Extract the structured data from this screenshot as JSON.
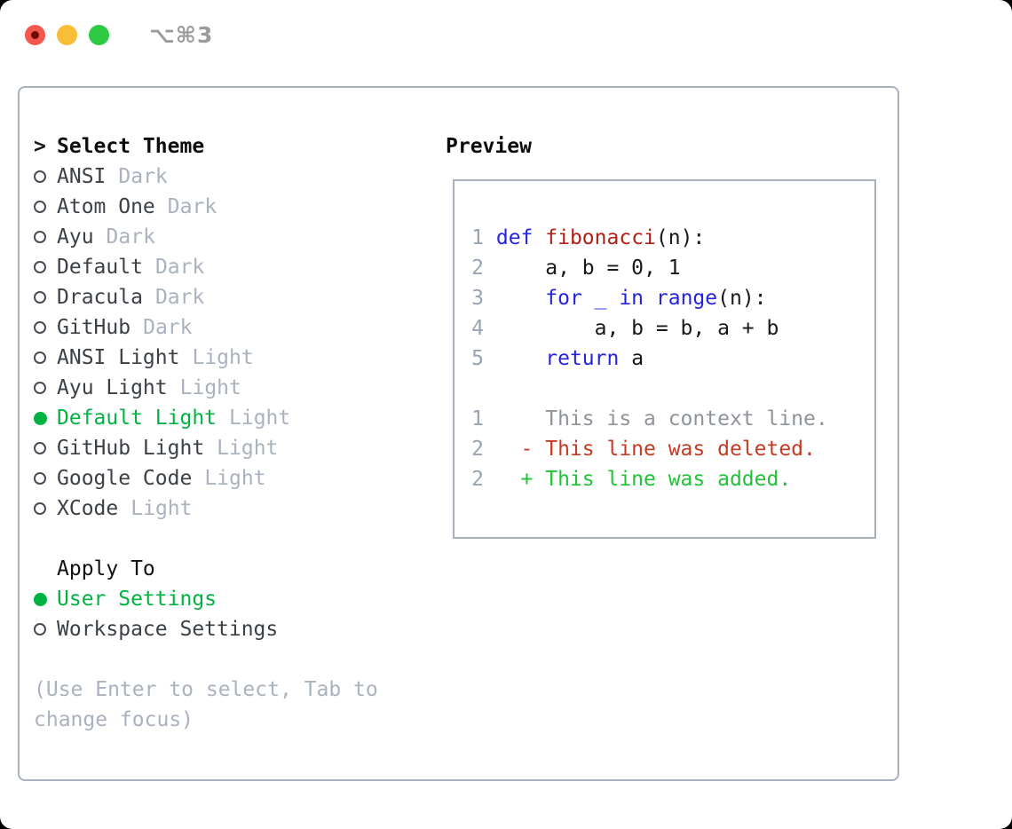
{
  "window": {
    "title_shortcut": "⌥⌘3"
  },
  "titlebar": {
    "buttons": [
      {
        "id": "close",
        "color": "#f4574d"
      },
      {
        "id": "minimize",
        "color": "#f9bd36"
      },
      {
        "id": "zoom",
        "color": "#30c944"
      }
    ]
  },
  "theme_menu": {
    "prompt": ">",
    "title": "Select Theme",
    "items": [
      {
        "name": "ANSI",
        "variant": "Dark",
        "selected": false
      },
      {
        "name": "Atom One",
        "variant": "Dark",
        "selected": false
      },
      {
        "name": "Ayu",
        "variant": "Dark",
        "selected": false
      },
      {
        "name": "Default",
        "variant": "Dark",
        "selected": false
      },
      {
        "name": "Dracula",
        "variant": "Dark",
        "selected": false
      },
      {
        "name": "GitHub",
        "variant": "Dark",
        "selected": false
      },
      {
        "name": "ANSI Light",
        "variant": "Light",
        "selected": false
      },
      {
        "name": "Ayu Light",
        "variant": "Light",
        "selected": false
      },
      {
        "name": "Default Light",
        "variant": "Light",
        "selected": true
      },
      {
        "name": "GitHub Light",
        "variant": "Light",
        "selected": false
      },
      {
        "name": "Google Code",
        "variant": "Light",
        "selected": false
      },
      {
        "name": "XCode",
        "variant": "Light",
        "selected": false
      }
    ]
  },
  "apply_to": {
    "title": "Apply To",
    "options": [
      {
        "label": "User Settings",
        "selected": true
      },
      {
        "label": "Workspace Settings",
        "selected": false
      }
    ]
  },
  "hint": "(Use Enter to select, Tab to change focus)",
  "preview": {
    "title": "Preview",
    "lines": [
      {
        "num": "1",
        "segments": [
          {
            "t": " ",
            "c": "c"
          },
          {
            "t": "def",
            "c": "k"
          },
          {
            "t": " ",
            "c": "c"
          },
          {
            "t": "fibonacci",
            "c": "f"
          },
          {
            "t": "(n):",
            "c": "c"
          }
        ]
      },
      {
        "num": "2",
        "segments": [
          {
            "t": "     a, b = 0, 1",
            "c": "c"
          }
        ]
      },
      {
        "num": "3",
        "segments": [
          {
            "t": "     ",
            "c": "c"
          },
          {
            "t": "for _ in range",
            "c": "k"
          },
          {
            "t": "(n):",
            "c": "c"
          }
        ]
      },
      {
        "num": "4",
        "segments": [
          {
            "t": "         a, b = b, a + b",
            "c": "c"
          }
        ]
      },
      {
        "num": "5",
        "segments": [
          {
            "t": "     ",
            "c": "c"
          },
          {
            "t": "return",
            "c": "k"
          },
          {
            "t": " a",
            "c": "c"
          }
        ]
      },
      {
        "num": "",
        "segments": []
      },
      {
        "num": "1",
        "segments": [
          {
            "t": "     This is a context line.",
            "c": "x"
          }
        ]
      },
      {
        "num": "2",
        "segments": [
          {
            "t": "   ",
            "c": "c"
          },
          {
            "t": "- This line was deleted.",
            "c": "d"
          }
        ]
      },
      {
        "num": "2",
        "segments": [
          {
            "t": "   ",
            "c": "c"
          },
          {
            "t": "+ This line was added.",
            "c": "a"
          }
        ]
      }
    ]
  },
  "colors": {
    "selection_green": "#00b341",
    "keyword_blue": "#2424df",
    "function_red": "#b01f14",
    "deleted_red": "#c53a22",
    "added_green": "#21c336",
    "muted_gray": "#a9b2be",
    "line_number_gray": "#99a3b2",
    "context_gray": "#8e9499",
    "border_gray": "#a9b1bd",
    "traffic_red": "#f4574d",
    "traffic_red_dot": "#6e0b06",
    "traffic_yellow": "#f9bd36",
    "traffic_green": "#30c944",
    "title_gray": "#9b9b9b"
  }
}
